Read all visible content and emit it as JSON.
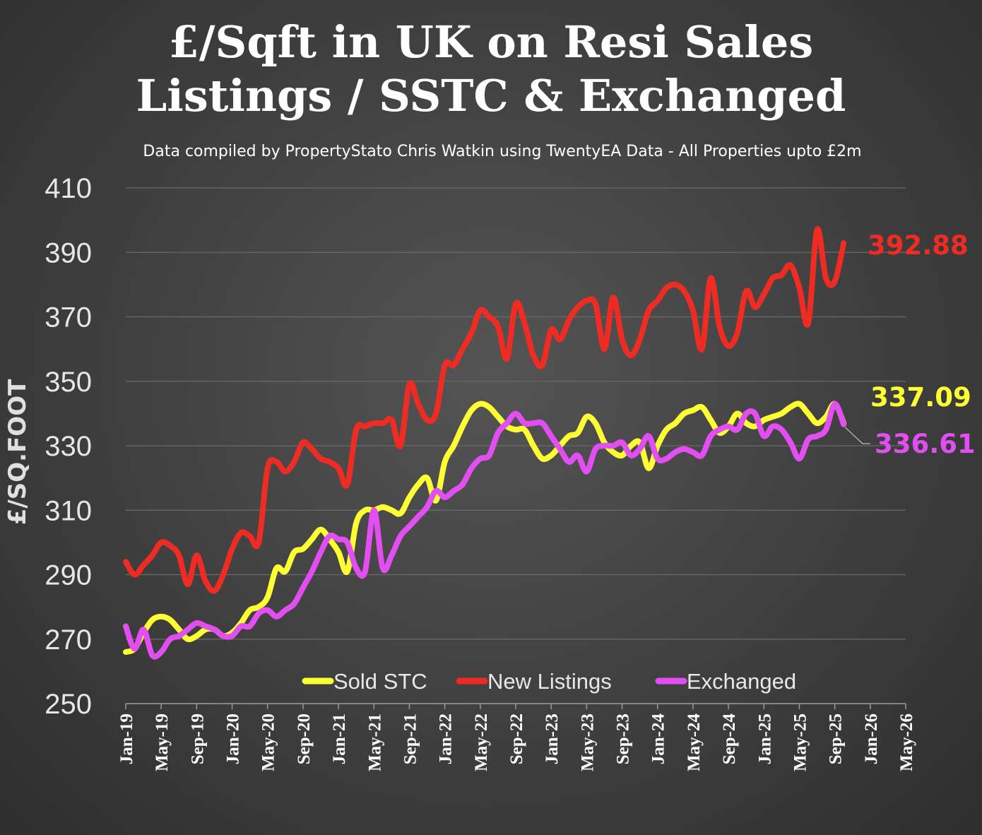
{
  "title_line1": "£/Sqft in UK on Resi Sales",
  "title_line2": "Listings / SSTC & Exchanged",
  "subtitle": "Data compiled by PropertyStato Chris Watkin using TwentyEA Data - All Properties upto £2m",
  "chart_data": {
    "type": "line",
    "title": "£/Sqft in UK on Resi Sales Listings / SSTC & Exchanged",
    "ylabel": "£/SQ.FOOT",
    "xlabel": "",
    "ylim": [
      250,
      410
    ],
    "yticks": [
      250,
      270,
      290,
      310,
      330,
      350,
      370,
      390,
      410
    ],
    "x_tick_labels": [
      "Jan-19",
      "May-19",
      "Sep-19",
      "Jan-20",
      "May-20",
      "Sep-20",
      "Jan-21",
      "May-21",
      "Sep-21",
      "Jan-22",
      "May-22",
      "Sep-22",
      "Jan-23",
      "May-23",
      "Sep-23",
      "Jan-24",
      "May-24",
      "Sep-24",
      "Jan-25",
      "May-25",
      "Sep-25",
      "Jan-26",
      "May-26"
    ],
    "x_start": "Jan-19",
    "grid": true,
    "legend_position": "bottom",
    "series": [
      {
        "name": "Sold STC",
        "color": "#ffff33",
        "end_label": "337.09",
        "values": [
          266,
          267,
          272,
          276,
          277,
          276,
          273,
          270,
          271,
          273,
          273,
          271,
          272,
          275,
          279,
          280,
          283,
          292,
          291,
          297,
          298,
          301,
          304,
          301,
          297,
          291,
          306,
          310,
          310,
          311,
          310,
          309,
          314,
          318,
          320,
          313,
          325,
          330,
          336,
          341,
          343,
          342,
          339,
          336,
          335,
          335,
          330,
          326,
          327,
          330,
          333,
          334,
          339,
          337,
          331,
          328,
          327,
          330,
          331,
          323,
          330,
          335,
          337,
          340,
          341,
          342,
          338,
          334,
          336,
          340,
          337,
          336,
          338,
          339,
          340,
          342,
          343,
          340,
          337,
          339,
          343,
          337
        ]
      },
      {
        "name": "New Listings",
        "color": "#ee2c24",
        "end_label": "392.88",
        "values": [
          294,
          290,
          293,
          296,
          300,
          299,
          296,
          287,
          296,
          288,
          285,
          290,
          298,
          303,
          302,
          300,
          323,
          325,
          322,
          325,
          331,
          329,
          326,
          325,
          323,
          318,
          335,
          336,
          337,
          337,
          338,
          330,
          349,
          343,
          338,
          340,
          355,
          355,
          360,
          365,
          372,
          370,
          367,
          357,
          374,
          368,
          358,
          355,
          366,
          363,
          369,
          373,
          375,
          374,
          360,
          376,
          363,
          358,
          363,
          372,
          375,
          379,
          380,
          378,
          372,
          360,
          382,
          367,
          361,
          365,
          378,
          373,
          377,
          382,
          383,
          386,
          379,
          368,
          397,
          382,
          381,
          392.88
        ]
      },
      {
        "name": "Exchanged",
        "color": "#e24ef2",
        "end_label": "336.61",
        "values": [
          274,
          267,
          273,
          265,
          266,
          270,
          271,
          273,
          275,
          274,
          273,
          271,
          271,
          274,
          274,
          278,
          279,
          277,
          279,
          281,
          286,
          291,
          297,
          302,
          301,
          300,
          292,
          291,
          310,
          292,
          296,
          302,
          305,
          308,
          311,
          316,
          314,
          316,
          318,
          323,
          326,
          327,
          334,
          337,
          340,
          337,
          337,
          337,
          333,
          329,
          325,
          327,
          322,
          329,
          330,
          330,
          331,
          327,
          329,
          333,
          326,
          326,
          328,
          329,
          328,
          327,
          333,
          335,
          336,
          335,
          340,
          340,
          333,
          336,
          335,
          331,
          326,
          332,
          333,
          335,
          343,
          336.61
        ]
      }
    ]
  }
}
